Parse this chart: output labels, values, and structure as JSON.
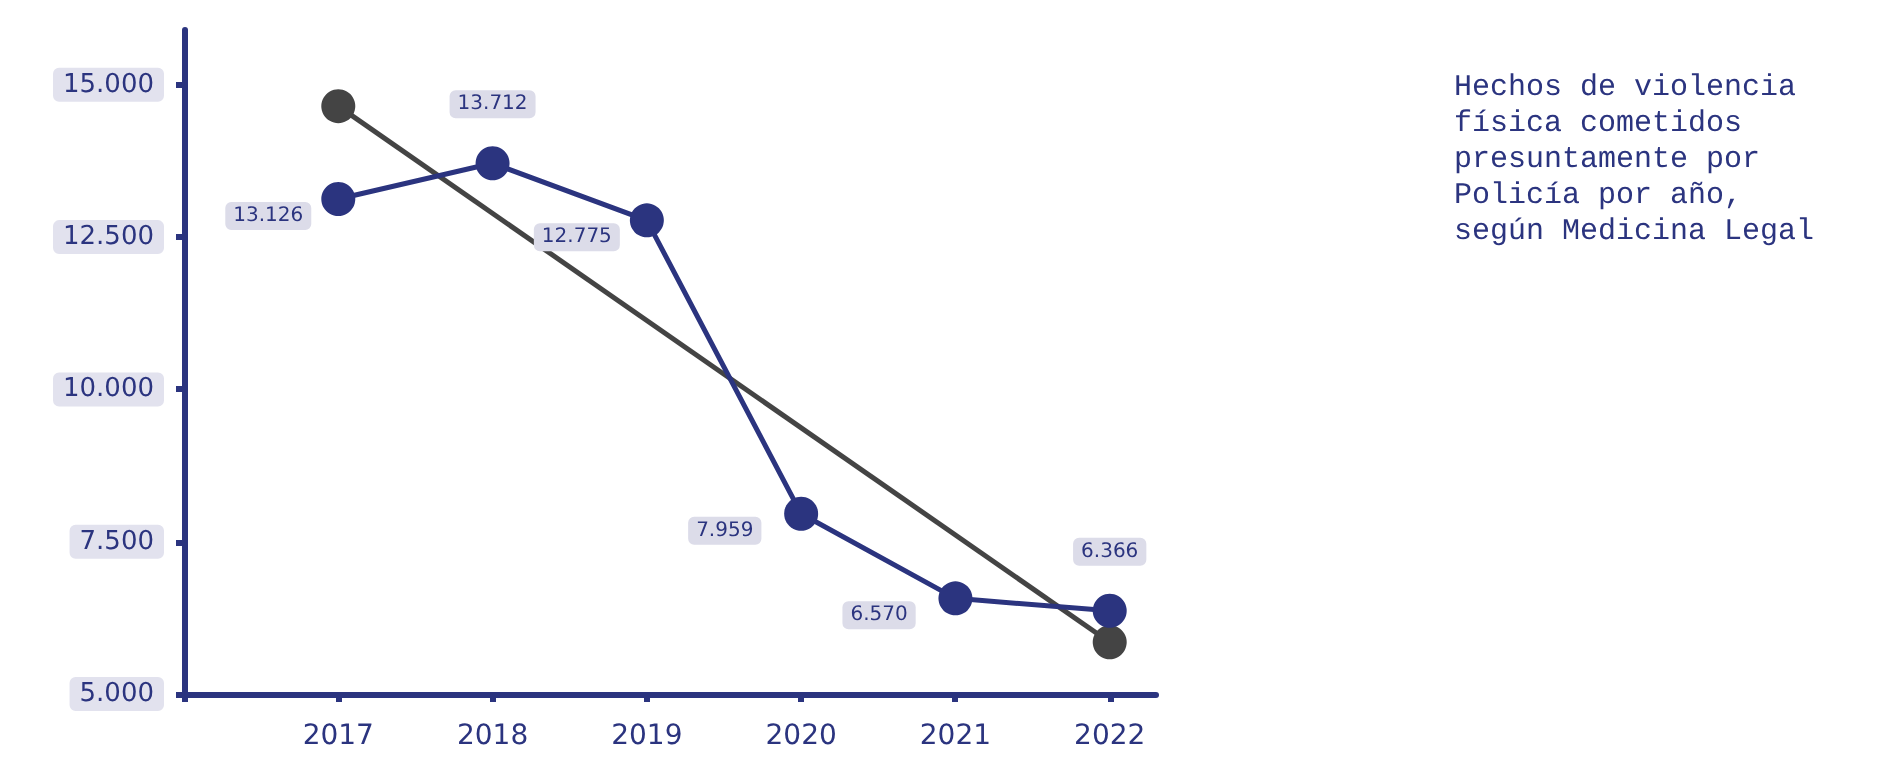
{
  "chart_data": {
    "type": "line",
    "title": "Hechos de violencia física cometidos presuntamente por Policía por año, según Medicina Legal",
    "x": [
      2017,
      2018,
      2019,
      2020,
      2021,
      2022
    ],
    "series": [
      {
        "color": "#2b347f",
        "values": [
          13126,
          13712,
          12775,
          7959,
          6570,
          6366
        ],
        "value_labels": [
          "13.126",
          "13.712",
          "12.775",
          "7.959",
          "6.570",
          "6.366"
        ]
      },
      {
        "type": "line",
        "color": "#444444",
        "x": [
          2017,
          2022
        ],
        "values": [
          14650,
          5850
        ]
      }
    ],
    "xlim": [
      2016,
      2022.3
    ],
    "xticks": [
      {
        "value": 2016,
        "label": null
      },
      2017,
      2018,
      2019,
      2020,
      2021,
      2022
    ],
    "ylim": [
      5000,
      15900
    ],
    "yticks": [
      {
        "value": 5000,
        "label": "5.000"
      },
      {
        "value": 7500,
        "label": "7.500"
      },
      {
        "value": 10000,
        "label": "10.000"
      },
      {
        "value": 12500,
        "label": "12.500"
      },
      {
        "value": 15000,
        "label": "15.000"
      }
    ],
    "marker": "circle",
    "grid": false
  }
}
